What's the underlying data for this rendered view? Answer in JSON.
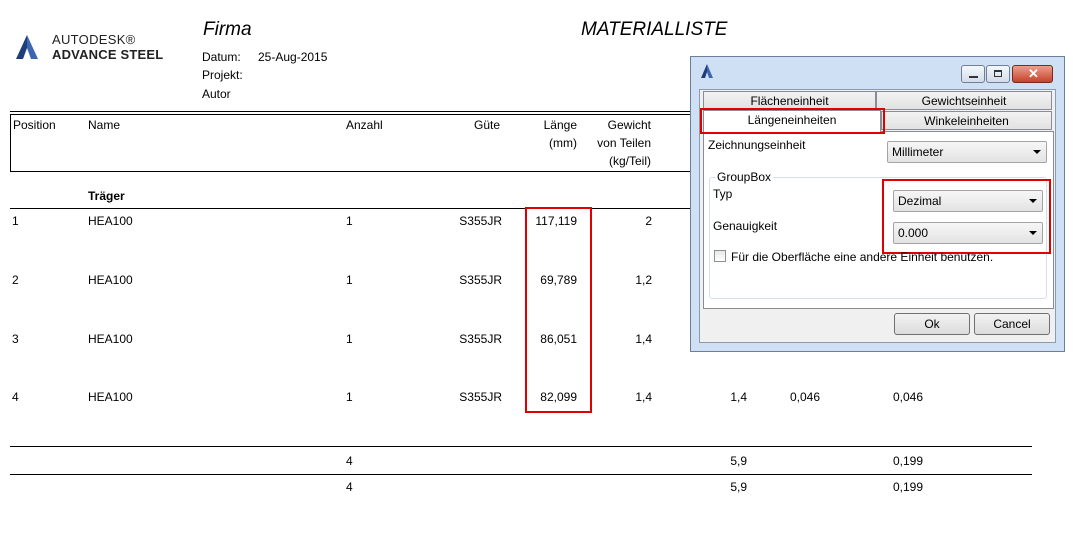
{
  "report": {
    "logo_line1": "AUTODESK®",
    "logo_line2": "ADVANCE STEEL",
    "company": "Firma",
    "title": "MATERIALLISTE",
    "datum_label": "Datum:",
    "datum_value": "25-Aug-2015",
    "projekt_label": "Projekt:",
    "autor_label": "Autor"
  },
  "table": {
    "headers": {
      "position": "Position",
      "name": "Name",
      "anzahl": "Anzahl",
      "guete": "Güte",
      "laenge1": "Länge",
      "laenge2": "(mm)",
      "gewicht1": "Gewicht",
      "gewicht2": "von Teilen",
      "gewicht3": "(kg/Teil)"
    },
    "group_label": "Träger",
    "rows": [
      {
        "pos": "1",
        "name": "HEA100",
        "anzahl": "1",
        "guete": "S355JR",
        "laenge": "117,119",
        "gewicht": "2",
        "c7": "",
        "c8": "",
        "c9": ""
      },
      {
        "pos": "2",
        "name": "HEA100",
        "anzahl": "1",
        "guete": "S355JR",
        "laenge": "69,789",
        "gewicht": "1,2",
        "c7": "",
        "c8": "",
        "c9": ""
      },
      {
        "pos": "3",
        "name": "HEA100",
        "anzahl": "1",
        "guete": "S355JR",
        "laenge": "86,051",
        "gewicht": "1,4",
        "c7": "",
        "c8": "",
        "c9": ""
      },
      {
        "pos": "4",
        "name": "HEA100",
        "anzahl": "1",
        "guete": "S355JR",
        "laenge": "82,099",
        "gewicht": "1,4",
        "c7": "1,4",
        "c8": "0,046",
        "c9": "0,046"
      }
    ],
    "totals": [
      {
        "anzahl": "4",
        "c7": "5,9",
        "c9": "0,199"
      },
      {
        "anzahl": "4",
        "c7": "5,9",
        "c9": "0,199"
      }
    ]
  },
  "dialog": {
    "tabs": {
      "flaeche": "Flächeneinheit",
      "gewicht": "Gewichtseinheit",
      "laenge": "Längeneinheiten",
      "winkel": "Winkeleinheiten"
    },
    "zeichnung_label": "Zeichnungseinheit",
    "zeichnung_value": "Millimeter",
    "groupbox_label": "GroupBox",
    "typ_label": "Typ",
    "typ_value": "Dezimal",
    "genauigkeit_label": "Genauigkeit",
    "genauigkeit_value": "0.000",
    "checkbox_label": "Für die Oberfläche eine andere Einheit benutzen.",
    "ok_label": "Ok",
    "cancel_label": "Cancel"
  },
  "colors": {
    "highlight": "#e00000",
    "dialog_frame": "#cfe0f4",
    "logo_blue": "#1f3d7a"
  },
  "icons": [
    "advance-steel-logo-icon",
    "dialog-app-icon",
    "minimize-icon",
    "maximize-icon",
    "close-icon",
    "dropdown-arrow-icon"
  ]
}
